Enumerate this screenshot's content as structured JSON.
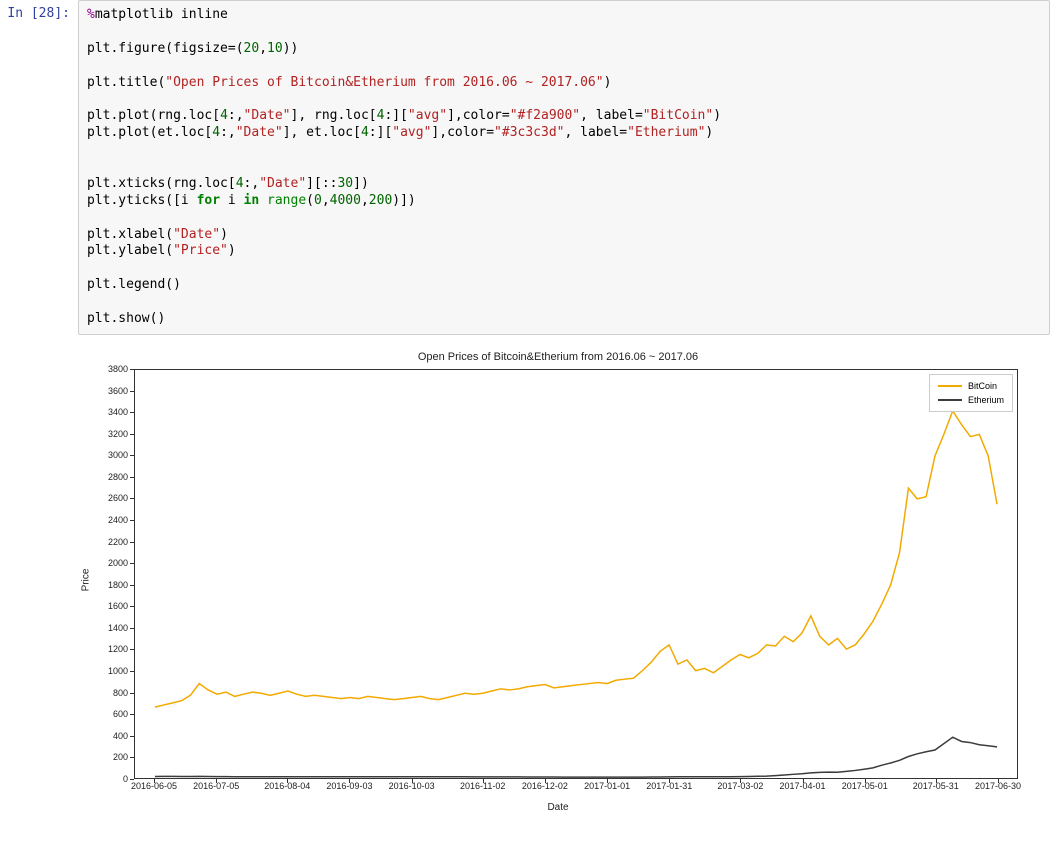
{
  "cell": {
    "prompt": "In [28]:",
    "code_lines": [
      [
        {
          "t": "%",
          "c": "tok-magic"
        },
        {
          "t": "matplotlib inline",
          "c": "tok-dot"
        }
      ],
      [],
      [
        {
          "t": "plt.figure(figsize",
          "c": "tok-dot"
        },
        {
          "t": "=",
          "c": "tok-dot"
        },
        {
          "t": "(",
          "c": "tok-paren"
        },
        {
          "t": "20",
          "c": "tok-num"
        },
        {
          "t": ",",
          "c": "tok-dot"
        },
        {
          "t": "10",
          "c": "tok-num"
        },
        {
          "t": "))",
          "c": "tok-paren"
        }
      ],
      [],
      [
        {
          "t": "plt.title(",
          "c": "tok-dot"
        },
        {
          "t": "\"Open Prices of Bitcoin&Etherium from 2016.06 ~ 2017.06\"",
          "c": "tok-str"
        },
        {
          "t": ")",
          "c": "tok-dot"
        }
      ],
      [],
      [
        {
          "t": "plt.plot(rng.loc[",
          "c": "tok-dot"
        },
        {
          "t": "4",
          "c": "tok-num"
        },
        {
          "t": ":,",
          "c": "tok-dot"
        },
        {
          "t": "\"Date\"",
          "c": "tok-str"
        },
        {
          "t": "], rng.loc[",
          "c": "tok-dot"
        },
        {
          "t": "4",
          "c": "tok-num"
        },
        {
          "t": ":][",
          "c": "tok-dot"
        },
        {
          "t": "\"avg\"",
          "c": "tok-str"
        },
        {
          "t": "],color",
          "c": "tok-dot"
        },
        {
          "t": "=",
          "c": "tok-dot"
        },
        {
          "t": "\"#f2a900\"",
          "c": "tok-str"
        },
        {
          "t": ", label",
          "c": "tok-dot"
        },
        {
          "t": "=",
          "c": "tok-dot"
        },
        {
          "t": "\"BitCoin\"",
          "c": "tok-str"
        },
        {
          "t": ")",
          "c": "tok-dot"
        }
      ],
      [
        {
          "t": "plt.plot(et.loc[",
          "c": "tok-dot"
        },
        {
          "t": "4",
          "c": "tok-num"
        },
        {
          "t": ":,",
          "c": "tok-dot"
        },
        {
          "t": "\"Date\"",
          "c": "tok-str"
        },
        {
          "t": "], et.loc[",
          "c": "tok-dot"
        },
        {
          "t": "4",
          "c": "tok-num"
        },
        {
          "t": ":][",
          "c": "tok-dot"
        },
        {
          "t": "\"avg\"",
          "c": "tok-str"
        },
        {
          "t": "],color",
          "c": "tok-dot"
        },
        {
          "t": "=",
          "c": "tok-dot"
        },
        {
          "t": "\"#3c3c3d\"",
          "c": "tok-str"
        },
        {
          "t": ", label",
          "c": "tok-dot"
        },
        {
          "t": "=",
          "c": "tok-dot"
        },
        {
          "t": "\"Etherium\"",
          "c": "tok-str"
        },
        {
          "t": ")",
          "c": "tok-dot"
        }
      ],
      [],
      [],
      [
        {
          "t": "plt.xticks(rng.loc[",
          "c": "tok-dot"
        },
        {
          "t": "4",
          "c": "tok-num"
        },
        {
          "t": ":,",
          "c": "tok-dot"
        },
        {
          "t": "\"Date\"",
          "c": "tok-str"
        },
        {
          "t": "][::",
          "c": "tok-dot"
        },
        {
          "t": "30",
          "c": "tok-num"
        },
        {
          "t": "])",
          "c": "tok-dot"
        }
      ],
      [
        {
          "t": "plt.yticks([i ",
          "c": "tok-dot"
        },
        {
          "t": "for",
          "c": "tok-kw"
        },
        {
          "t": " i ",
          "c": "tok-dot"
        },
        {
          "t": "in",
          "c": "tok-kw"
        },
        {
          "t": " ",
          "c": "tok-dot"
        },
        {
          "t": "range",
          "c": "tok-builtin"
        },
        {
          "t": "(",
          "c": "tok-dot"
        },
        {
          "t": "0",
          "c": "tok-num"
        },
        {
          "t": ",",
          "c": "tok-dot"
        },
        {
          "t": "4000",
          "c": "tok-num"
        },
        {
          "t": ",",
          "c": "tok-dot"
        },
        {
          "t": "200",
          "c": "tok-num"
        },
        {
          "t": ")])",
          "c": "tok-dot"
        }
      ],
      [],
      [
        {
          "t": "plt.xlabel(",
          "c": "tok-dot"
        },
        {
          "t": "\"Date\"",
          "c": "tok-str"
        },
        {
          "t": ")",
          "c": "tok-dot"
        }
      ],
      [
        {
          "t": "plt.ylabel(",
          "c": "tok-dot"
        },
        {
          "t": "\"Price\"",
          "c": "tok-str"
        },
        {
          "t": ")",
          "c": "tok-dot"
        }
      ],
      [],
      [
        {
          "t": "plt.legend()",
          "c": "tok-dot"
        }
      ],
      [],
      [
        {
          "t": "plt.show()",
          "c": "tok-dot"
        }
      ]
    ]
  },
  "chart": {
    "type": "line",
    "title": "Open Prices of Bitcoin&Etherium from 2016.06 ~ 2017.06",
    "title_fontsize": 11,
    "xlabel": "Date",
    "ylabel": "Price",
    "label_fontsize": 10,
    "tick_fontsize": 9,
    "background_color": "#ffffff",
    "border_color": "#333333",
    "ylim": [
      0,
      3800
    ],
    "ytick_step": 200,
    "yticks": [
      0,
      200,
      400,
      600,
      800,
      1000,
      1200,
      1400,
      1600,
      1800,
      2000,
      2200,
      2400,
      2600,
      2800,
      3000,
      3200,
      3400,
      3600,
      3800
    ],
    "xticks": [
      "2016-06-05",
      "2016-07-05",
      "2016-08-04",
      "2016-09-03",
      "2016-10-03",
      "2016-11-02",
      "2016-12-02",
      "2017-01-01",
      "2017-01-31",
      "2017-03-02",
      "2017-04-01",
      "2017-05-01",
      "2017-05-31",
      "2017-06-30"
    ],
    "legend": {
      "position": "upper-right",
      "border_color": "#cccccc",
      "items": [
        {
          "label": "BitCoin",
          "color": "#f2a900"
        },
        {
          "label": "Etherium",
          "color": "#3c3c3d"
        }
      ]
    },
    "line_width": 1.5,
    "series": [
      {
        "name": "BitCoin",
        "color": "#f2a900",
        "values": [
          660,
          680,
          700,
          720,
          770,
          880,
          820,
          780,
          800,
          760,
          780,
          800,
          790,
          770,
          790,
          810,
          780,
          760,
          770,
          760,
          750,
          740,
          750,
          740,
          760,
          750,
          740,
          730,
          740,
          750,
          760,
          740,
          730,
          750,
          770,
          790,
          780,
          790,
          810,
          830,
          820,
          830,
          850,
          860,
          870,
          840,
          850,
          860,
          870,
          880,
          890,
          880,
          910,
          920,
          930,
          1000,
          1080,
          1180,
          1240,
          1060,
          1100,
          1000,
          1020,
          980,
          1040,
          1100,
          1150,
          1120,
          1160,
          1240,
          1230,
          1320,
          1270,
          1350,
          1510,
          1320,
          1240,
          1300,
          1200,
          1240,
          1340,
          1460,
          1620,
          1800,
          2100,
          2700,
          2600,
          2620,
          3000,
          3200,
          3420,
          3290,
          3180,
          3200,
          3000,
          2550
        ]
      },
      {
        "name": "Etherium",
        "color": "#3c3c3d",
        "values": [
          14,
          15,
          15,
          14,
          14,
          15,
          14,
          13,
          13,
          12,
          12,
          12,
          12,
          12,
          12,
          12,
          12,
          12,
          12,
          12,
          12,
          11,
          11,
          11,
          11,
          11,
          11,
          11,
          11,
          12,
          12,
          11,
          11,
          11,
          11,
          11,
          10,
          10,
          10,
          10,
          10,
          10,
          9,
          9,
          9,
          9,
          8,
          8,
          8,
          8,
          8,
          8,
          8,
          8,
          8,
          8,
          9,
          9,
          10,
          11,
          11,
          11,
          11,
          12,
          12,
          12,
          13,
          14,
          16,
          18,
          22,
          28,
          34,
          40,
          48,
          52,
          55,
          54,
          62,
          70,
          82,
          95,
          120,
          140,
          165,
          200,
          225,
          245,
          260,
          320,
          380,
          340,
          330,
          310,
          300,
          290
        ]
      }
    ]
  }
}
